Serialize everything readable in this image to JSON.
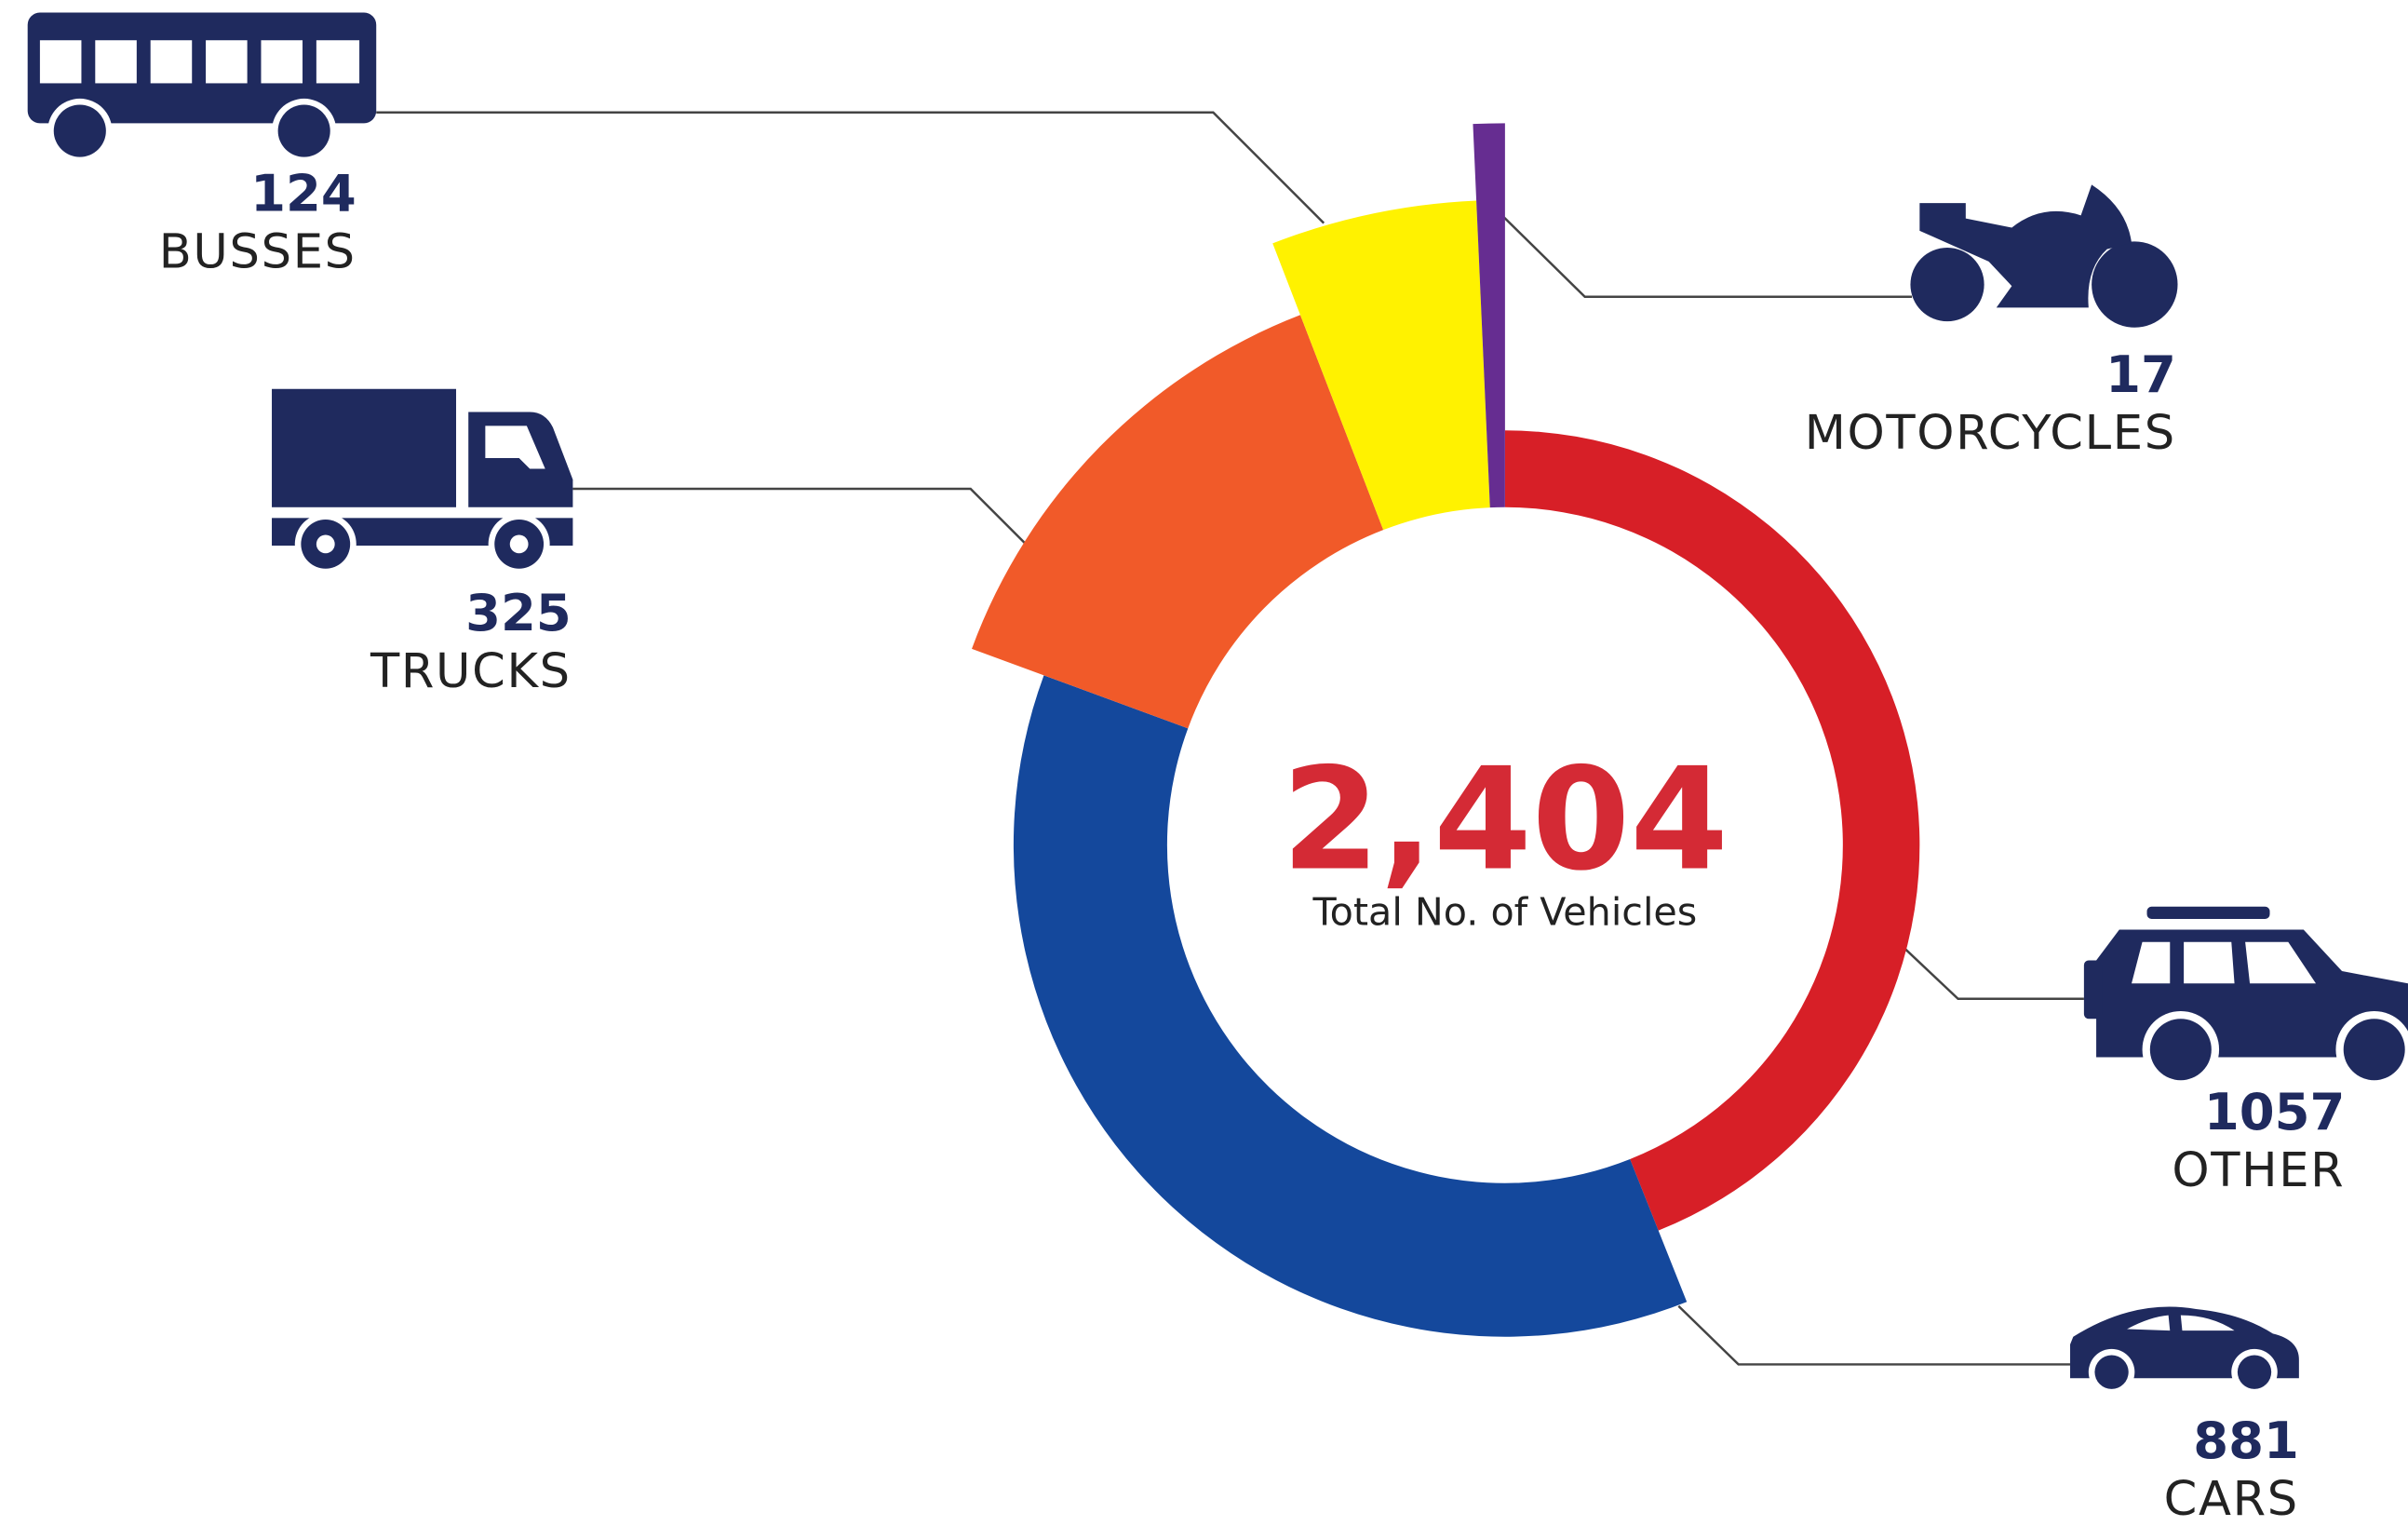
{
  "chart_data": {
    "type": "donut",
    "categories": [
      "OTHER",
      "CARS",
      "TRUCKS",
      "BUSSES",
      "MOTORCYCLES"
    ],
    "values": [
      1057,
      881,
      325,
      124,
      17
    ],
    "colors": [
      "#d71f27",
      "#14489c",
      "#f15a29",
      "#fff200",
      "#662d91"
    ],
    "total_label": "2,404",
    "total_caption": "Total No. of Vehicles"
  }
}
